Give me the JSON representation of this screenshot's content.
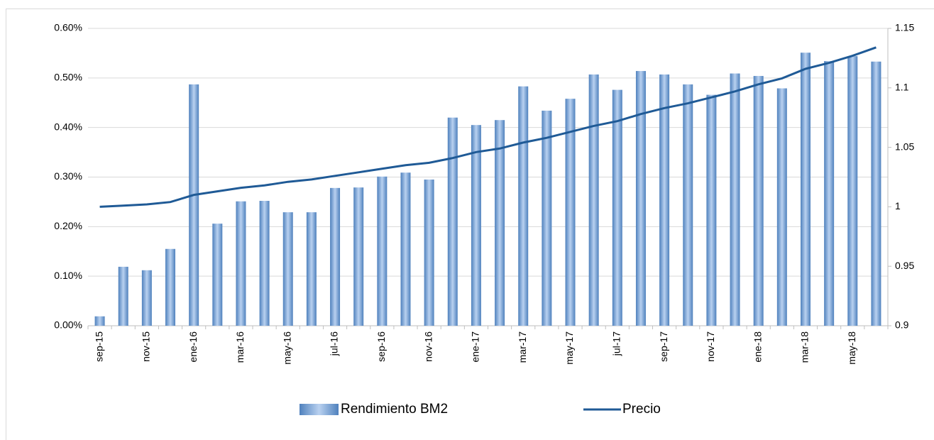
{
  "chart_data": {
    "type": "bar-line",
    "categories": [
      "sep-15",
      null,
      "nov-15",
      null,
      "ene-16",
      null,
      "mar-16",
      null,
      "may-16",
      null,
      "jul-16",
      null,
      "sep-16",
      null,
      "nov-16",
      null,
      "ene-17",
      null,
      "mar-17",
      null,
      "may-17",
      null,
      "jul-17",
      null,
      "sep-17",
      null,
      "nov-17",
      null,
      "ene-18",
      null,
      "mar-18",
      null,
      "may-18",
      null
    ],
    "series": [
      {
        "name": "Rendimiento BM2",
        "type": "bar",
        "color": "#4f81bd",
        "values": [
          0.019,
          0.119,
          0.112,
          0.155,
          0.487,
          0.206,
          0.251,
          0.252,
          0.229,
          0.229,
          0.278,
          0.279,
          0.301,
          0.309,
          0.295,
          0.42,
          0.405,
          0.415,
          0.483,
          0.434,
          0.458,
          0.507,
          0.476,
          0.514,
          0.507,
          0.487,
          0.466,
          0.509,
          0.504,
          0.479,
          0.551,
          0.534,
          0.544,
          0.533
        ]
      },
      {
        "name": "Precio",
        "type": "line",
        "axis": "y2",
        "color": "#1f5a96",
        "values": [
          1.0,
          1.001,
          1.002,
          1.004,
          1.01,
          1.013,
          1.016,
          1.018,
          1.021,
          1.023,
          1.026,
          1.029,
          1.032,
          1.035,
          1.037,
          1.041,
          1.046,
          1.049,
          1.054,
          1.058,
          1.063,
          1.068,
          1.072,
          1.078,
          1.083,
          1.087,
          1.092,
          1.097,
          1.103,
          1.108,
          1.116,
          1.121,
          1.127,
          1.134
        ]
      }
    ],
    "ylim": [
      0,
      0.6
    ],
    "yticks": [
      {
        "value": 0,
        "label": "0.00%"
      },
      {
        "value": 0.1,
        "label": "0.10%"
      },
      {
        "value": 0.2,
        "label": "0.20%"
      },
      {
        "value": 0.3,
        "label": "0.30%"
      },
      {
        "value": 0.4,
        "label": "0.40%"
      },
      {
        "value": 0.5,
        "label": "0.50%"
      },
      {
        "value": 0.6,
        "label": "0.60%"
      }
    ],
    "y2lim": [
      0.9,
      1.15
    ],
    "y2ticks": [
      0.9,
      0.95,
      1,
      1.05,
      1.1,
      1.15
    ],
    "grid": true,
    "legend": "bottom"
  }
}
